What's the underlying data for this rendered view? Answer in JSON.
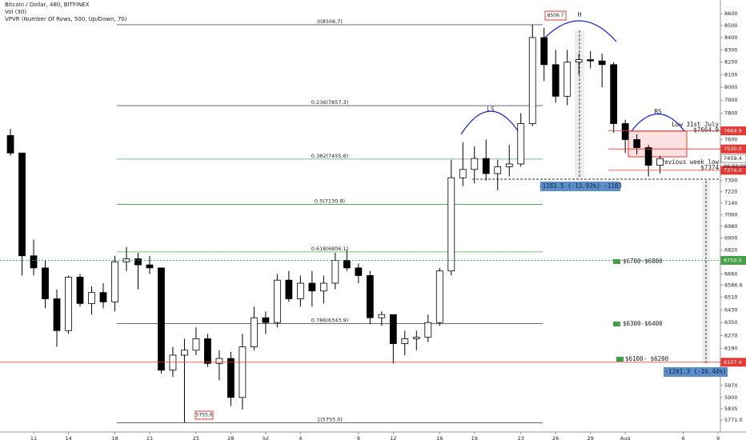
{
  "chart_data": {
    "type": "candlestick",
    "title": "Bitcoin / Dollar, 480, BITFINEX",
    "subtitle": [
      "Vol (30)",
      "VPVR (Number Of Rows, 500, Up/Down, 70)"
    ],
    "log_scale": true,
    "up_color": "#ffffff",
    "down_color": "#000000",
    "ylim": [
      5703,
      8716
    ],
    "yticks": [
      8600,
      8500,
      8400,
      8300,
      8200,
      8100,
      8000,
      7900,
      7800,
      7600,
      7300,
      7220,
      7140,
      7060,
      6980,
      6900,
      6820,
      6660,
      6586.6,
      6510,
      6430,
      6350,
      6270,
      6190,
      5970,
      5900,
      5835,
      {
        "value": 5771,
        "label": "5771.0"
      }
    ],
    "xlim": [
      -0.9,
      61.2
    ],
    "xticks": [
      {
        "value": 2,
        "label": "11"
      },
      {
        "value": 5,
        "label": "14"
      },
      {
        "value": 9,
        "label": "18"
      },
      {
        "value": 12,
        "label": "21"
      },
      {
        "value": 16,
        "label": "25"
      },
      {
        "value": 19,
        "label": "28"
      },
      {
        "value": 22,
        "label": "Jul"
      },
      {
        "value": 25,
        "label": "4"
      },
      {
        "value": 30,
        "label": "9"
      },
      {
        "value": 33,
        "label": "12"
      },
      {
        "value": 37,
        "label": "16"
      },
      {
        "value": 40,
        "label": "19"
      },
      {
        "value": 44,
        "label": "23"
      },
      {
        "value": 47,
        "label": "26"
      },
      {
        "value": 50,
        "label": "29"
      },
      {
        "value": 53,
        "label": "Aug"
      },
      {
        "value": 58,
        "label": "6"
      },
      {
        "value": 61,
        "label": "9"
      }
    ],
    "x": [
      0,
      1,
      2,
      3,
      4,
      5,
      6,
      7,
      8,
      9,
      10,
      11,
      12,
      13,
      14,
      15,
      16,
      17,
      18,
      19,
      20,
      21,
      22,
      23,
      24,
      25,
      26,
      27,
      28,
      29,
      30,
      31,
      32,
      33,
      34,
      35,
      36,
      37,
      38,
      39,
      40,
      41,
      42,
      43,
      44,
      45,
      46,
      47,
      48,
      49,
      50,
      51,
      52,
      53,
      54,
      55,
      56
    ],
    "open": [
      7630,
      7500,
      6780,
      6700,
      6500,
      6300,
      6640,
      6470,
      6540,
      6480,
      6740,
      6760,
      6720,
      6700,
      6060,
      6150,
      6180,
      6250,
      6100,
      6130,
      5900,
      6200,
      6380,
      6350,
      6620,
      6500,
      6600,
      6550,
      6600,
      6750,
      6700,
      6650,
      6380,
      6400,
      6220,
      6250,
      6260,
      6350,
      6680,
      7320,
      7380,
      7460,
      7350,
      7400,
      7420,
      7720,
      8400,
      8180,
      7930,
      8200,
      8220,
      8210,
      8180,
      7720,
      7600,
      7540,
      7410
    ],
    "high": [
      7680,
      7500,
      6890,
      6750,
      6560,
      6650,
      6660,
      6580,
      6600,
      6780,
      6840,
      6800,
      6780,
      6700,
      6200,
      6250,
      6320,
      6280,
      6180,
      6170,
      6280,
      6450,
      6420,
      6660,
      6680,
      6650,
      6680,
      6650,
      6800,
      6820,
      6730,
      6680,
      6420,
      6400,
      6300,
      6300,
      6400,
      6700,
      7450,
      7580,
      7550,
      7600,
      7450,
      7560,
      7800,
      8506.7,
      8480,
      8300,
      8300,
      8270,
      8290,
      8270,
      8200,
      7750,
      7640,
      7560,
      7480
    ],
    "low": [
      7480,
      6650,
      6650,
      6440,
      6200,
      6280,
      6450,
      6400,
      6440,
      6420,
      6680,
      6560,
      6660,
      6040,
      6020,
      5755,
      6150,
      6080,
      6000,
      5850,
      5830,
      6180,
      6280,
      6320,
      6480,
      6450,
      6450,
      6470,
      6560,
      6680,
      6600,
      6340,
      6330,
      6100,
      6150,
      6180,
      6230,
      6330,
      6650,
      7260,
      7280,
      7300,
      7230,
      7330,
      7400,
      7700,
      8050,
      7880,
      7860,
      8100,
      8150,
      8000,
      7650,
      7500,
      7490,
      7330,
      7350
    ],
    "close": [
      7500,
      6780,
      6700,
      6500,
      6300,
      6640,
      6470,
      6540,
      6480,
      6740,
      6760,
      6720,
      6700,
      6060,
      6150,
      6180,
      6250,
      6100,
      6130,
      5900,
      6200,
      6380,
      6350,
      6620,
      6500,
      6600,
      6550,
      6600,
      6750,
      6700,
      6650,
      6380,
      6400,
      6220,
      6250,
      6260,
      6350,
      6680,
      7320,
      7380,
      7460,
      7350,
      7400,
      7420,
      7720,
      8400,
      8180,
      7930,
      8200,
      8220,
      8210,
      8180,
      7720,
      7600,
      7540,
      7410,
      7459.4
    ],
    "fib_levels": [
      {
        "label": "0(8506.7)",
        "value": 8506.7,
        "color": "#555555"
      },
      {
        "label": "0.236(7857.3)",
        "value": 7857.3,
        "color": "#555555"
      },
      {
        "label": "0.382(7455.6)",
        "value": 7455.6,
        "color": "#4caf50"
      },
      {
        "label": "0.5(7130.9)",
        "value": 7130.9,
        "color": "#2e7d32"
      },
      {
        "label": "0.618(6806.1)",
        "value": 6806.1,
        "color": "#4caf50"
      },
      {
        "label": "0.786(6343.9)",
        "value": 6343.9,
        "color": "#555555"
      },
      {
        "label": "1(5755.0)",
        "value": 5755.0,
        "color": "#555555"
      }
    ],
    "price_labels": [
      {
        "value": 7664.9,
        "label": "7664.9",
        "color": "#e53935"
      },
      {
        "value": 7530,
        "label": "7530.0",
        "color": "#e53935"
      },
      {
        "value": 7459.4,
        "label": "7459.4",
        "color": "#ffffff"
      },
      {
        "value": 7374,
        "label": "7374.0",
        "color": "#e53935"
      },
      {
        "value": 6750,
        "label": "6750.0",
        "color": "#43a047"
      },
      {
        "value": 6107.4,
        "label": "6107.4",
        "color": "#e53935"
      }
    ],
    "countdown": "06:50:08",
    "annotations": {
      "high_label": "8506.7",
      "low_label": "5755.0",
      "ls": "LS",
      "h": "H",
      "rs": "RS",
      "zone_1": "$6700-$6800",
      "zone_2": "$6300-$6400",
      "zone_3": "$6100- $6200",
      "low_july_1": "Low 31st July",
      "low_july_2": "$7664.9",
      "prev_week_1": "Previous week low",
      "prev_week_2": "$7374",
      "measure_1": "-1183.5 (-13.93%) -1183",
      "measure_2": "-1201.3 (-16.44%)"
    }
  }
}
